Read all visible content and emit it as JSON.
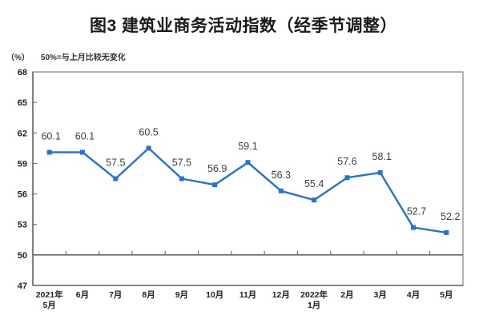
{
  "title": "图3 建筑业商务活动指数（经季节调整）",
  "unit_label": "（%）",
  "note": "50%=与上月比较无变化",
  "colors": {
    "line": "#2272D9",
    "marker": "#2272D9",
    "data_label": "#3d3d3d",
    "axis_text": "#222222",
    "border": "#808080",
    "axis_dark": "#666666",
    "baseline": "#666666"
  },
  "chart_data": {
    "type": "line",
    "title": "图3 建筑业商务活动指数（经季节调整）",
    "ylabel": "（%）",
    "annotation": "50%=与上月比较无变化",
    "categories": [
      [
        "2021年",
        "5月"
      ],
      [
        "6月"
      ],
      [
        "7月"
      ],
      [
        "8月"
      ],
      [
        "9月"
      ],
      [
        "10月"
      ],
      [
        "11月"
      ],
      [
        "12月"
      ],
      [
        "2022年",
        "1月"
      ],
      [
        "2月"
      ],
      [
        "3月"
      ],
      [
        "4月"
      ],
      [
        "5月"
      ]
    ],
    "values": [
      60.1,
      60.1,
      57.5,
      60.5,
      57.5,
      56.9,
      59.1,
      56.3,
      55.4,
      57.6,
      58.1,
      52.7,
      52.2
    ],
    "y_ticks": [
      47,
      50,
      53,
      56,
      59,
      62,
      65,
      68
    ],
    "ylim": [
      47,
      68
    ],
    "baseline_value": 50,
    "marker": "square",
    "grid": false,
    "legend": false,
    "label_dx": [
      2,
      3,
      0,
      0,
      0,
      3,
      0,
      0,
      0,
      0,
      2,
      4,
      5
    ],
    "label_dy": -16
  }
}
